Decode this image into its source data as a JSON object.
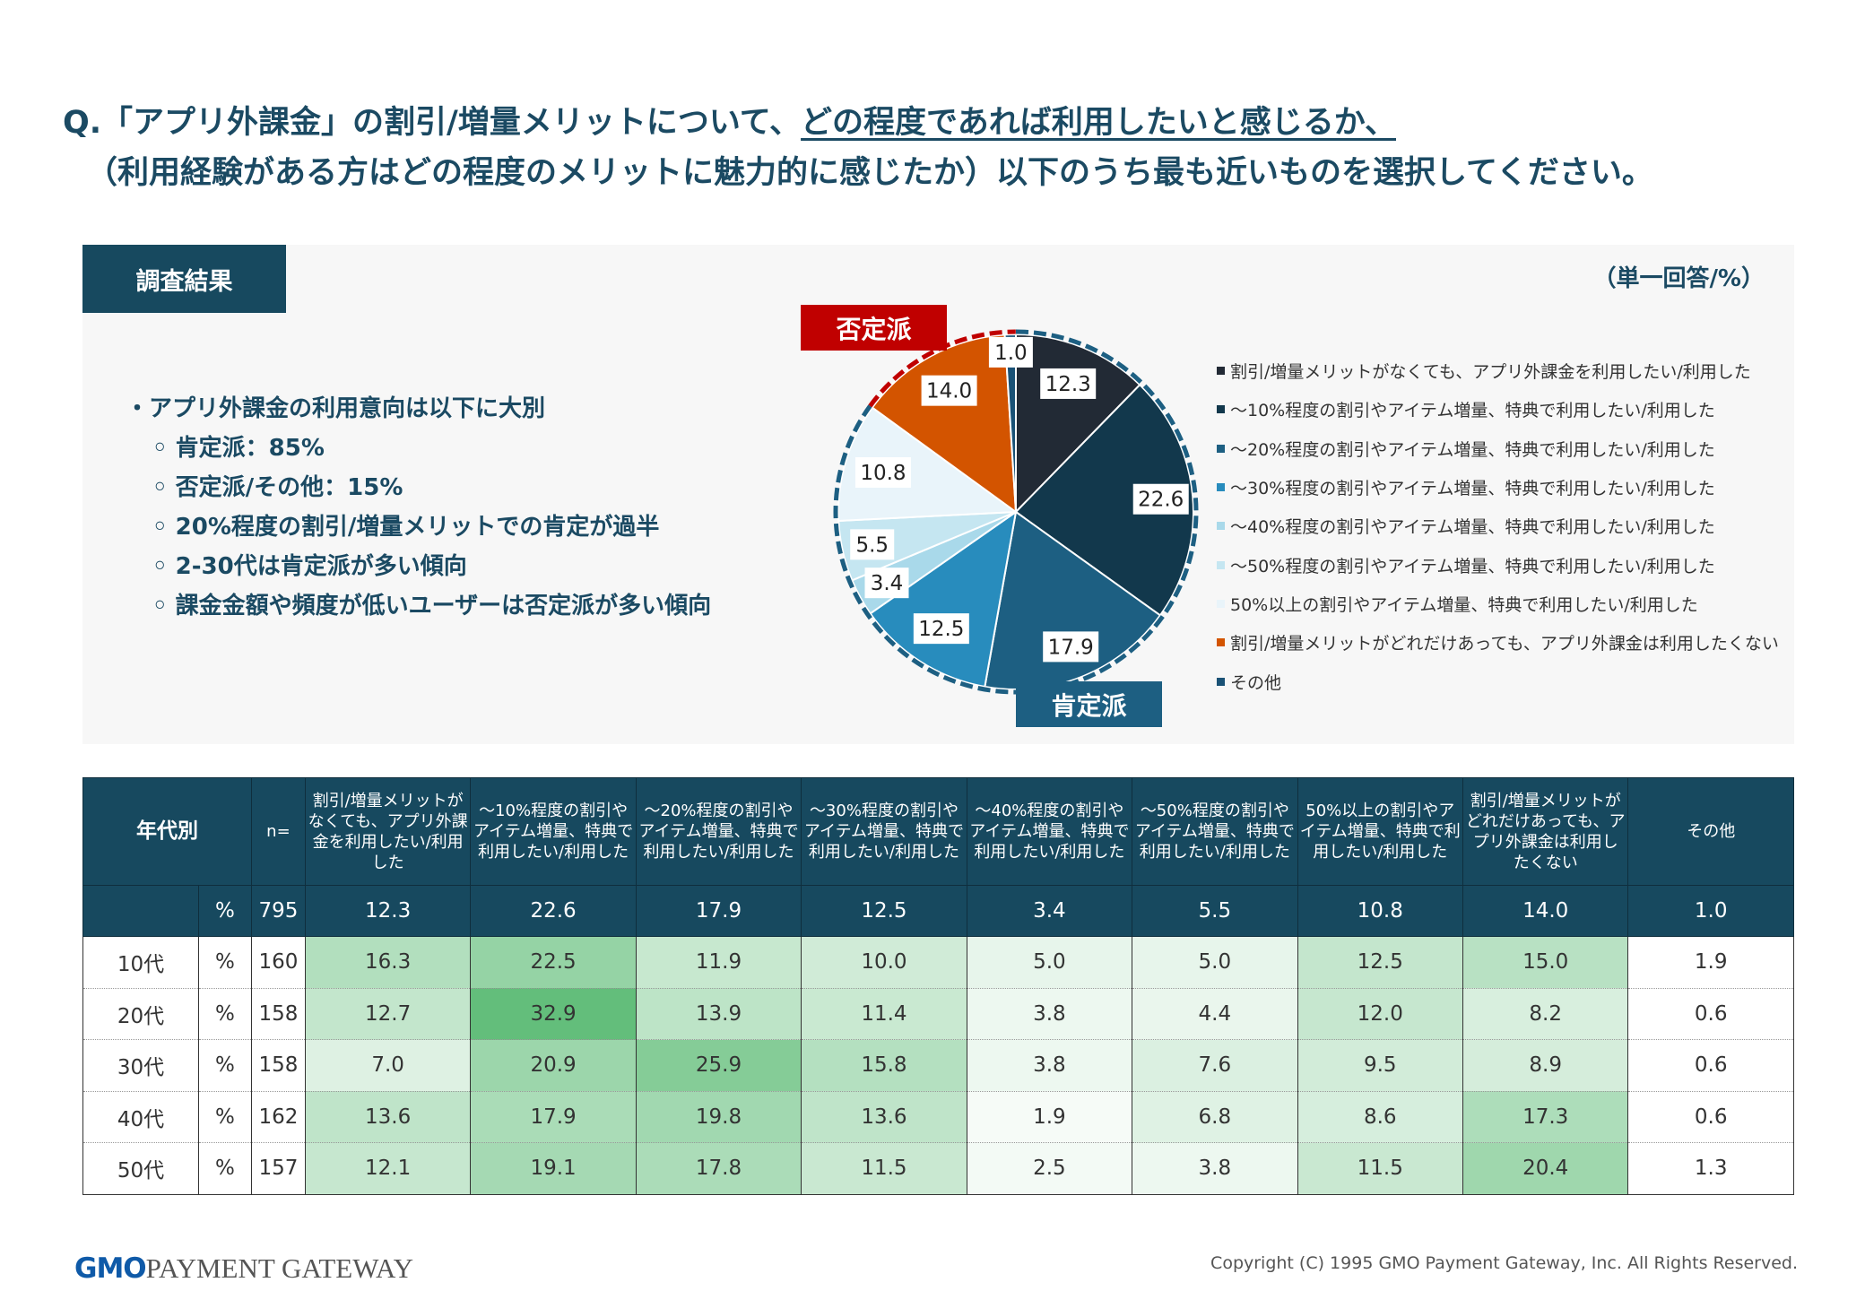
{
  "title": {
    "line1_a": "Q.「アプリ外課金」の割引/増量メリットについて、",
    "line1_b": "どの程度であれば利用したいと感じるか、",
    "line2": "（利用経験がある方はどの程度のメリットに魅力的に感じたか）以下のうち最も近いものを選択してください。"
  },
  "panel": {
    "tag": "調査結果",
    "unit": "（単一回答/%）",
    "bullets": [
      "・アプリ外課金の利用意向は以下に大別",
      "◦ 肯定派：85%",
      "◦ 否定派/その他：15%",
      "◦ 20%程度の割引/増量メリットでの肯定が過半",
      "◦ 2-30代は肯定派が多い傾向",
      "◦ 課金金額や頻度が低いユーザーは否定派が多い傾向"
    ],
    "negative_label": "否定派",
    "positive_label": "肯定派",
    "negative_color": "#c00000",
    "positive_color": "#1d5f82"
  },
  "chart_data": [
    {
      "type": "pie",
      "legend_placement": "right",
      "categories": [
        "割引/増量メリットがなくても、アプリ外課金を利用したい/利用した",
        "～10%程度の割引やアイテム増量、特典で利用したい/利用した",
        "～20%程度の割引やアイテム増量、特典で利用したい/利用した",
        "～30%程度の割引やアイテム増量、特典で利用したい/利用した",
        "～40%程度の割引やアイテム増量、特典で利用したい/利用した",
        "～50%程度の割引やアイテム増量、特典で利用したい/利用した",
        "50%以上の割引やアイテム増量、特典で利用したい/利用した",
        "割引/増量メリットがどれだけあっても、アプリ外課金は利用したくない",
        "その他"
      ],
      "values": [
        12.3,
        22.6,
        17.9,
        12.5,
        3.4,
        5.5,
        10.8,
        14.0,
        1.0
      ],
      "colors": [
        "#222a35",
        "#12384c",
        "#1d5f82",
        "#288cbd",
        "#a9d9ea",
        "#c5e6f1",
        "#e9f4fa",
        "#d35400",
        "#1a5276"
      ]
    },
    {
      "type": "heatmap",
      "columns": [
        "割引/増量メリットがなくても、アプリ外課金を利用したい/利用した",
        "～10%程度の割引やアイテム増量、特典で利用したい/利用した",
        "～20%程度の割引やアイテム増量、特典で利用したい/利用した",
        "～30%程度の割引やアイテム増量、特典で利用したい/利用した",
        "～40%程度の割引やアイテム増量、特典で利用したい/利用した",
        "～50%程度の割引やアイテム増量、特典で利用したい/利用した",
        "50%以上の割引やアイテム増量、特典で利用したい/利用した",
        "割引/増量メリットがどれだけあっても、アプリ外課金は利用したくない",
        "その他"
      ],
      "header_age": "年代別",
      "header_n": "n=",
      "unit": "%",
      "total": {
        "label": "",
        "n": 795,
        "values": [
          12.3,
          22.6,
          17.9,
          12.5,
          3.4,
          5.5,
          10.8,
          14.0,
          1.0
        ]
      },
      "rows": [
        {
          "label": "10代",
          "n": 160,
          "values": [
            16.3,
            22.5,
            11.9,
            10.0,
            5.0,
            5.0,
            12.5,
            15.0,
            1.9
          ]
        },
        {
          "label": "20代",
          "n": 158,
          "values": [
            12.7,
            32.9,
            13.9,
            11.4,
            3.8,
            4.4,
            12.0,
            8.2,
            0.6
          ]
        },
        {
          "label": "30代",
          "n": 158,
          "values": [
            7.0,
            20.9,
            25.9,
            15.8,
            3.8,
            7.6,
            9.5,
            8.9,
            0.6
          ]
        },
        {
          "label": "40代",
          "n": 162,
          "values": [
            13.6,
            17.9,
            19.8,
            13.6,
            1.9,
            6.8,
            8.6,
            17.3,
            0.6
          ]
        },
        {
          "label": "50代",
          "n": 157,
          "values": [
            12.1,
            19.1,
            17.8,
            11.5,
            2.5,
            3.8,
            11.5,
            20.4,
            1.3
          ]
        }
      ],
      "low_color": "#ffffff",
      "high_color": "#63be7b"
    }
  ],
  "footer": {
    "logo_gmo": "GMO",
    "logo_rest": "PAYMENT GATEWAY",
    "copyright": "Copyright (C) 1995 GMO Payment Gateway, Inc. All Rights Reserved."
  }
}
